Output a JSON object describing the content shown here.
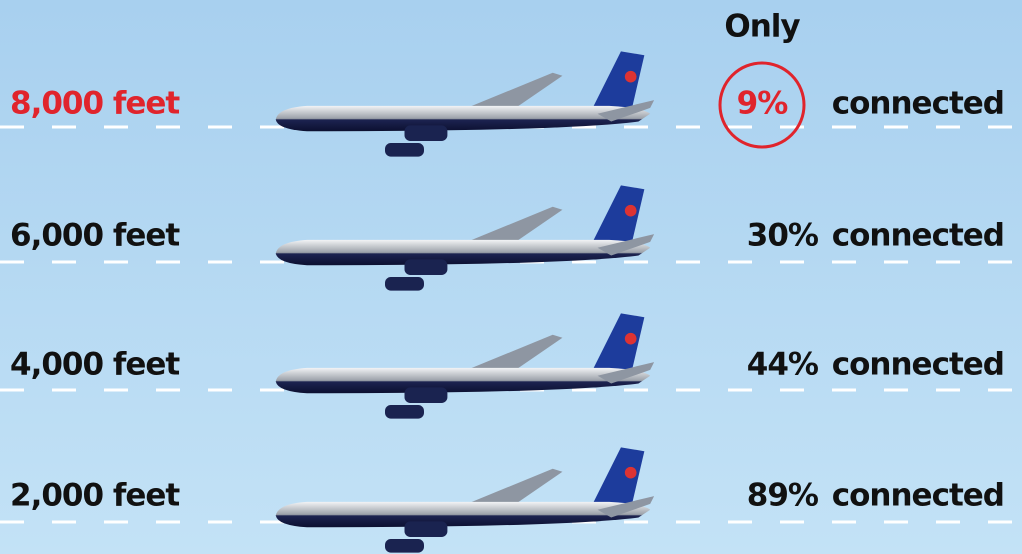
{
  "annotation": "Only",
  "rows": [
    {
      "altitude": "8,000 feet",
      "percent": "9%",
      "status": "connected"
    },
    {
      "altitude": "6,000 feet",
      "percent": "30%",
      "status": "connected"
    },
    {
      "altitude": "4,000 feet",
      "percent": "44%",
      "status": "connected"
    },
    {
      "altitude": "2,000 feet",
      "percent": "89%",
      "status": "connected"
    }
  ]
}
